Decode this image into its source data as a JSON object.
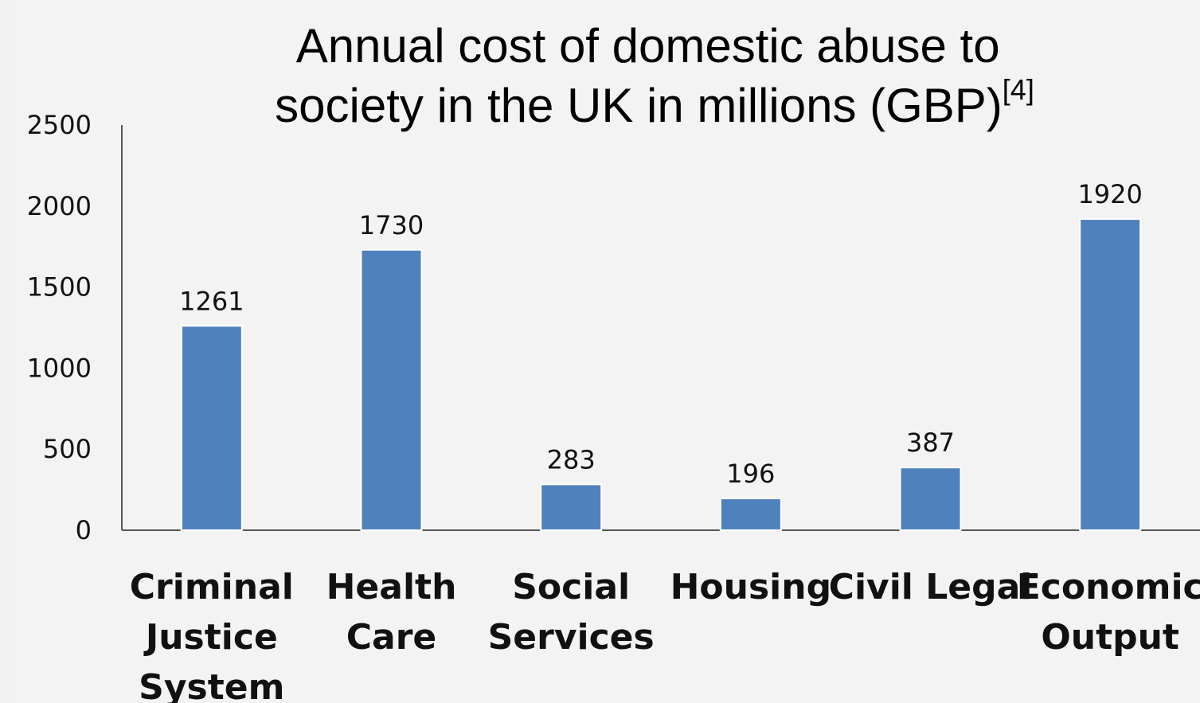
{
  "chart_data": {
    "type": "bar",
    "title": "Annual cost of domestic abuse to society in the UK in millions (GBP)",
    "title_lines": [
      "Annual cost of domestic abuse to",
      "society in the UK in millions (GBP)"
    ],
    "title_superscript": "[4]",
    "categories": [
      "Criminal Justice System",
      "Health Care",
      "Social Services",
      "Housing",
      "Civil Legal",
      "Economic Output"
    ],
    "category_lines": [
      [
        "Criminal",
        "Justice",
        "System"
      ],
      [
        "Health",
        "Care"
      ],
      [
        "Social",
        "Services"
      ],
      [
        "Housing"
      ],
      [
        "Civil Legal"
      ],
      [
        "Economic",
        "Output"
      ]
    ],
    "values": [
      1261,
      1730,
      283,
      196,
      387,
      1920
    ],
    "data_labels": [
      "1261",
      "1730",
      "283",
      "196",
      "387",
      "1920"
    ],
    "yticks": [
      "0",
      "500",
      "1000",
      "1500",
      "2000",
      "2500"
    ],
    "ylim": [
      0,
      2500
    ],
    "xlabel": "",
    "ylabel": "",
    "grid": false,
    "legend": "none",
    "bar_color": "#4f81bd"
  }
}
